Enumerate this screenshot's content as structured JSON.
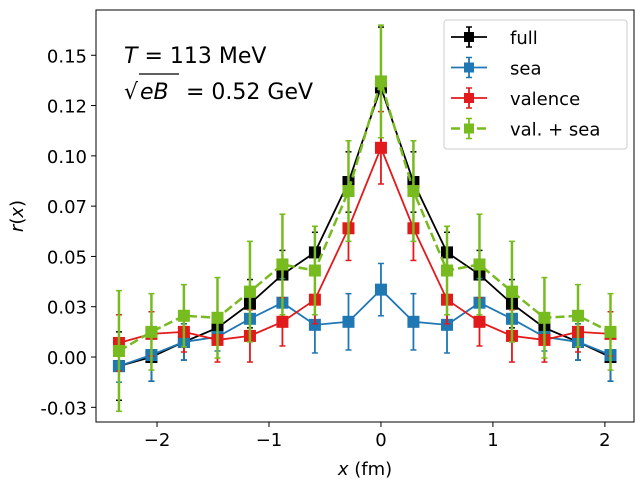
{
  "chart_data": {
    "type": "line",
    "title": "",
    "xlabel": "x (fm)",
    "ylabel": "r(x)",
    "xlim": [
      -2.545,
      2.26
    ],
    "ylim": [
      -0.0323,
      0.1725
    ],
    "xticks": [
      -2,
      -1,
      0,
      1,
      2
    ],
    "xtick_labels": [
      "−2",
      "−1",
      "0",
      "1",
      "2"
    ],
    "yticks": [
      -0.025,
      0.0,
      0.025,
      0.05,
      0.075,
      0.1,
      0.125,
      0.15
    ],
    "ytick_labels": [
      "-0.03",
      "0.00",
      "0.03",
      "0.05",
      "0.07",
      "0.10",
      "0.12",
      "0.15"
    ],
    "grid": false,
    "legend_position": "top-right",
    "annotations": {
      "temperature": "T = 113 MeV",
      "field_lhs": "eB",
      "field_rhs": "= 0.52 GeV"
    },
    "x": [
      -2.34,
      -2.05,
      -1.76,
      -1.46,
      -1.17,
      -0.88,
      -0.59,
      -0.29,
      0.0,
      0.29,
      0.59,
      0.88,
      1.17,
      1.46,
      1.76,
      2.05
    ],
    "series": [
      {
        "name": "full",
        "color": "#000000",
        "dashed": false,
        "values": [
          -0.0045,
          0.0,
          0.0075,
          0.0145,
          0.0265,
          0.041,
          0.052,
          0.087,
          0.134,
          0.087,
          0.052,
          0.041,
          0.0265,
          0.0145,
          0.0075,
          0.0
        ],
        "errors": [
          0.017,
          0.012,
          0.009,
          0.007,
          0.012,
          0.012,
          0.01,
          0.015,
          0.03,
          0.015,
          0.01,
          0.012,
          0.012,
          0.007,
          0.009,
          0.012
        ]
      },
      {
        "name": "sea",
        "color": "#1f77b4",
        "dashed": false,
        "values": [
          -0.0045,
          0.001,
          0.0075,
          0.01,
          0.019,
          0.027,
          0.016,
          0.0175,
          0.0335,
          0.0175,
          0.016,
          0.027,
          0.019,
          0.01,
          0.0075,
          0.001
        ],
        "errors": [
          0.008,
          0.013,
          0.009,
          0.007,
          0.011,
          0.012,
          0.014,
          0.014,
          0.013,
          0.014,
          0.014,
          0.012,
          0.011,
          0.007,
          0.009,
          0.013
        ]
      },
      {
        "name": "valence",
        "color": "#e31a1c",
        "dashed": false,
        "values": [
          0.007,
          0.0115,
          0.0125,
          0.0085,
          0.0105,
          0.0175,
          0.0285,
          0.064,
          0.104,
          0.064,
          0.0285,
          0.0175,
          0.0105,
          0.0085,
          0.0125,
          0.0115
        ],
        "errors": [
          0.014,
          0.011,
          0.01,
          0.011,
          0.013,
          0.012,
          0.012,
          0.016,
          0.018,
          0.016,
          0.012,
          0.012,
          0.013,
          0.011,
          0.01,
          0.011
        ]
      },
      {
        "name": "val. + sea",
        "color": "#77bb1f",
        "dashed": true,
        "values": [
          0.003,
          0.0125,
          0.0205,
          0.0195,
          0.0325,
          0.046,
          0.043,
          0.0825,
          0.137,
          0.0825,
          0.043,
          0.046,
          0.0325,
          0.0195,
          0.0205,
          0.0125
        ],
        "errors": [
          0.03,
          0.019,
          0.0155,
          0.02,
          0.025,
          0.025,
          0.022,
          0.025,
          0.028,
          0.025,
          0.022,
          0.025,
          0.025,
          0.02,
          0.0155,
          0.019
        ]
      }
    ]
  }
}
